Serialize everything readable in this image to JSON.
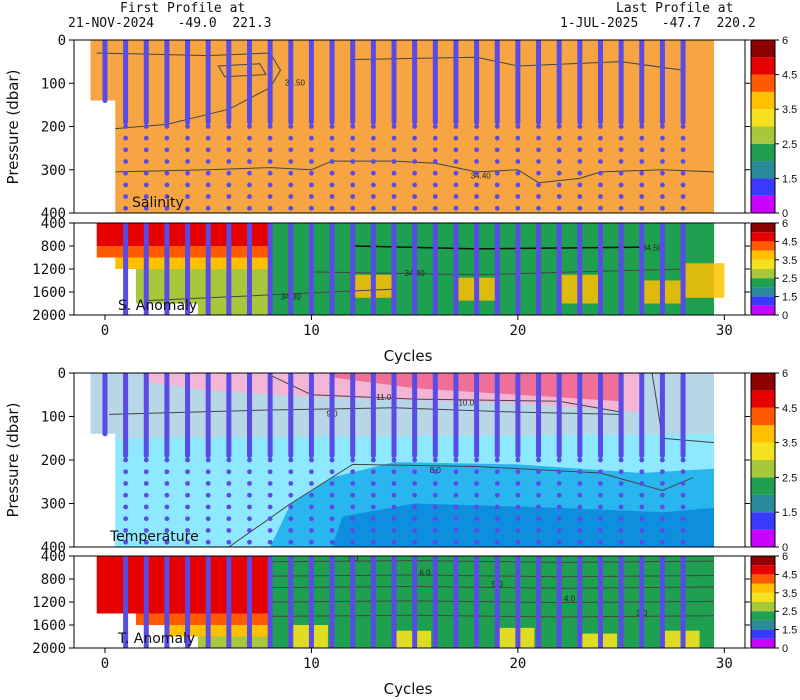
{
  "header": {
    "first_title": "First Profile at",
    "first_info": "21-NOV-2024   -49.0  221.3",
    "last_title": "Last Profile at",
    "last_info": "1-JUL-2025   -47.7  220.2"
  },
  "colors": {
    "profile_line": "#5a4be6",
    "contour": "#444444",
    "colorbar": [
      "#cc00ff",
      "#3a3aff",
      "#2a8a9a",
      "#1ea050",
      "#a8c83c",
      "#f5e11e",
      "#ffc000",
      "#ff5a00",
      "#e60000",
      "#8c0000"
    ]
  },
  "chart_data": [
    {
      "id": "salinity",
      "type": "section",
      "label": "Salinity",
      "ylabel": "Pressure (dbar)",
      "xlim": [
        -1.5,
        31
      ],
      "ylim": [
        400,
        0
      ],
      "xticks": [
        0,
        10,
        20,
        30
      ],
      "yticks": [
        0,
        100,
        200,
        300,
        400
      ],
      "background": "#f7a442",
      "contours": [
        "34.50",
        "34.40"
      ],
      "profiles": [
        0,
        1,
        2,
        3,
        4,
        5,
        6,
        7,
        8,
        9,
        10,
        11,
        12,
        13,
        14,
        15,
        16,
        17,
        18,
        19,
        20,
        21,
        22,
        23,
        24,
        25,
        26,
        27,
        28
      ],
      "colorbar": {
        "ticks": [
          "6",
          "4.5",
          "3.5",
          "2.5",
          "1.5",
          "0"
        ]
      }
    },
    {
      "id": "s_anomaly",
      "type": "section",
      "label": "S. Anomaly",
      "xlim": [
        -1.5,
        31
      ],
      "ylim": [
        2000,
        400
      ],
      "yticks": [
        400,
        800,
        1200,
        1600,
        2000
      ],
      "contours": [
        "34.30",
        "34.40",
        "34.50"
      ],
      "colorbar": {
        "ticks": [
          "6",
          "4.5",
          "3.5",
          "2.5",
          "1.5",
          "0"
        ]
      }
    },
    {
      "id": "temperature",
      "type": "section",
      "label": "Temperature",
      "ylabel": "Pressure (dbar)",
      "xlabel": "Cycles",
      "xlim": [
        -1.5,
        31
      ],
      "ylim": [
        400,
        0
      ],
      "xticks": [
        0,
        10,
        20,
        30
      ],
      "yticks": [
        0,
        100,
        200,
        300,
        400
      ],
      "contours": [
        "11.0",
        "10.0",
        "9.0",
        "8.0"
      ],
      "colorbar": {
        "ticks": [
          "6",
          "4.5",
          "3.5",
          "2.5",
          "1.5",
          "0"
        ]
      }
    },
    {
      "id": "t_anomaly",
      "type": "section",
      "label": "T. Anomaly",
      "xlabel": "Cycles",
      "xlim": [
        -1.5,
        31
      ],
      "ylim": [
        2000,
        400
      ],
      "yticks": [
        400,
        800,
        1200,
        1600,
        2000
      ],
      "contours": [
        "7.0",
        "6.0",
        "5.0",
        "4.0",
        "3.0"
      ],
      "colorbar": {
        "ticks": [
          "6",
          "4.5",
          "3.5",
          "2.5",
          "1.5",
          "0"
        ]
      }
    }
  ]
}
